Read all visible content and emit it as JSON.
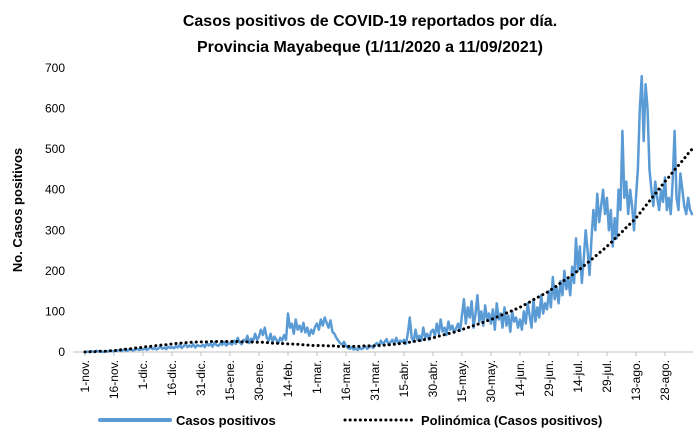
{
  "chart_data": {
    "type": "line",
    "title": "Casos positivos de COVID-19 reportados por día.",
    "subtitle": "Provincia Mayabeque (1/11/2020 a 11/09/2021)",
    "y_label": "No. Casos positivos",
    "ylim": [
      0,
      700
    ],
    "yticks": [
      0,
      100,
      200,
      300,
      400,
      500,
      600,
      700
    ],
    "grid": false,
    "legend": "bottom",
    "categories": [
      "1-nov.",
      null,
      null,
      null,
      null,
      null,
      null,
      null,
      null,
      null,
      null,
      null,
      null,
      null,
      null,
      "16-nov.",
      null,
      null,
      null,
      null,
      null,
      null,
      null,
      null,
      null,
      null,
      null,
      null,
      null,
      null,
      "1-dic.",
      null,
      null,
      null,
      null,
      null,
      null,
      null,
      null,
      null,
      null,
      null,
      null,
      null,
      null,
      "16-dic.",
      null,
      null,
      null,
      null,
      null,
      null,
      null,
      null,
      null,
      null,
      null,
      null,
      null,
      null,
      "31-dic.",
      null,
      null,
      null,
      null,
      null,
      null,
      null,
      null,
      null,
      null,
      null,
      null,
      null,
      null,
      "15-ene.",
      null,
      null,
      null,
      null,
      null,
      null,
      null,
      null,
      null,
      null,
      null,
      null,
      null,
      null,
      "30-ene.",
      null,
      null,
      null,
      null,
      null,
      null,
      null,
      null,
      null,
      null,
      null,
      null,
      null,
      null,
      "14-feb.",
      null,
      null,
      null,
      null,
      null,
      null,
      null,
      null,
      null,
      null,
      null,
      null,
      null,
      null,
      "1-mar.",
      null,
      null,
      null,
      null,
      null,
      null,
      null,
      null,
      null,
      null,
      null,
      null,
      null,
      null,
      "16-mar.",
      null,
      null,
      null,
      null,
      null,
      null,
      null,
      null,
      null,
      null,
      null,
      null,
      null,
      null,
      "31-mar.",
      null,
      null,
      null,
      null,
      null,
      null,
      null,
      null,
      null,
      null,
      null,
      null,
      null,
      null,
      "15-abr.",
      null,
      null,
      null,
      null,
      null,
      null,
      null,
      null,
      null,
      null,
      null,
      null,
      null,
      null,
      "30-abr.",
      null,
      null,
      null,
      null,
      null,
      null,
      null,
      null,
      null,
      null,
      null,
      null,
      null,
      null,
      "15-may.",
      null,
      null,
      null,
      null,
      null,
      null,
      null,
      null,
      null,
      null,
      null,
      null,
      null,
      null,
      "30-may.",
      null,
      null,
      null,
      null,
      null,
      null,
      null,
      null,
      null,
      null,
      null,
      null,
      null,
      null,
      "14-jun.",
      null,
      null,
      null,
      null,
      null,
      null,
      null,
      null,
      null,
      null,
      null,
      null,
      null,
      null,
      "29-jun.",
      null,
      null,
      null,
      null,
      null,
      null,
      null,
      null,
      null,
      null,
      null,
      null,
      null,
      null,
      "14-jul.",
      null,
      null,
      null,
      null,
      null,
      null,
      null,
      null,
      null,
      null,
      null,
      null,
      null,
      null,
      "29-jul.",
      null,
      null,
      null,
      null,
      null,
      null,
      null,
      null,
      null,
      null,
      null,
      null,
      null,
      null,
      "13-ago.",
      null,
      null,
      null,
      null,
      null,
      null,
      null,
      null,
      null,
      null,
      null,
      null,
      null,
      null,
      "28-ago.",
      null,
      null,
      null,
      null,
      null,
      null,
      null,
      null,
      null,
      null,
      null,
      null,
      null,
      null
    ],
    "series": [
      {
        "name": "Casos positivos",
        "color": "#5b9bd5",
        "style": "solid",
        "values": [
          0,
          1,
          0,
          2,
          1,
          0,
          3,
          1,
          2,
          0,
          1,
          2,
          1,
          3,
          2,
          2,
          4,
          3,
          5,
          2,
          6,
          4,
          3,
          7,
          5,
          4,
          6,
          8,
          5,
          7,
          6,
          9,
          5,
          8,
          12,
          7,
          10,
          6,
          9,
          14,
          8,
          11,
          7,
          13,
          10,
          12,
          9,
          15,
          11,
          18,
          10,
          14,
          20,
          12,
          16,
          13,
          19,
          11,
          17,
          15,
          14,
          18,
          12,
          22,
          16,
          20,
          13,
          24,
          17,
          15,
          21,
          18,
          25,
          16,
          20,
          22,
          18,
          28,
          20,
          35,
          24,
          19,
          30,
          26,
          40,
          22,
          33,
          28,
          45,
          30,
          38,
          55,
          42,
          60,
          35,
          28,
          45,
          25,
          38,
          30,
          22,
          35,
          28,
          42,
          30,
          95,
          60,
          70,
          45,
          80,
          55,
          65,
          50,
          72,
          48,
          60,
          40,
          55,
          45,
          62,
          70,
          55,
          80,
          65,
          85,
          72,
          60,
          78,
          50,
          45,
          35,
          28,
          22,
          18,
          25,
          15,
          10,
          8,
          12,
          6,
          9,
          5,
          11,
          7,
          10,
          14,
          8,
          12,
          15,
          10,
          18,
          22,
          15,
          28,
          20,
          25,
          32,
          18,
          24,
          30,
          20,
          35,
          22,
          28,
          25,
          30,
          20,
          45,
          85,
          35,
          25,
          55,
          30,
          40,
          28,
          60,
          35,
          45,
          30,
          50,
          55,
          40,
          70,
          45,
          80,
          50,
          60,
          42,
          75,
          55,
          65,
          48,
          58,
          70,
          52,
          90,
          130,
          70,
          110,
          85,
          125,
          60,
          95,
          140,
          75,
          100,
          65,
          115,
          80,
          95,
          70,
          105,
          55,
          120,
          80,
          95,
          60,
          110,
          65,
          90,
          50,
          100,
          75,
          85,
          60,
          80,
          55,
          100,
          70,
          120,
          90,
          60,
          130,
          75,
          110,
          85,
          140,
          95,
          120,
          105,
          150,
          110,
          185,
          130,
          160,
          120,
          175,
          140,
          200,
          155,
          180,
          140,
          210,
          170,
          280,
          200,
          260,
          170,
          230,
          300,
          250,
          190,
          280,
          350,
          300,
          390,
          320,
          360,
          400,
          340,
          380,
          300,
          350,
          260,
          330,
          280,
          400,
          350,
          545,
          380,
          420,
          340,
          400,
          360,
          300,
          380,
          450,
          600,
          680,
          520,
          660,
          600,
          450,
          400,
          360,
          420,
          380,
          350,
          400,
          370,
          430,
          350,
          380,
          340,
          420,
          545,
          380,
          350,
          440,
          400,
          360,
          340,
          380,
          350,
          340
        ]
      },
      {
        "name": "Polinómica (Casos positivos)",
        "color": "#000000",
        "style": "dotted",
        "values": [
          0,
          0,
          0,
          1,
          1,
          1,
          1,
          2,
          2,
          2,
          2,
          2,
          3,
          3,
          3,
          3,
          4,
          4,
          5,
          6,
          6,
          7,
          7,
          8,
          8,
          9,
          10,
          10,
          11,
          11,
          12,
          13,
          13,
          14,
          14,
          15,
          15,
          16,
          16,
          17,
          17,
          18,
          18,
          19,
          19,
          20,
          20,
          21,
          21,
          22,
          22,
          22,
          23,
          23,
          23,
          24,
          24,
          24,
          25,
          25,
          25,
          25,
          25,
          25,
          25,
          26,
          26,
          26,
          26,
          26,
          26,
          26,
          26,
          26,
          26,
          26,
          26,
          26,
          26,
          26,
          25,
          25,
          25,
          25,
          25,
          25,
          25,
          24,
          24,
          24,
          24,
          24,
          24,
          23,
          23,
          23,
          22,
          22,
          22,
          22,
          21,
          21,
          21,
          20,
          20,
          20,
          20,
          20,
          19,
          19,
          19,
          18,
          18,
          18,
          17,
          17,
          17,
          17,
          16,
          16,
          16,
          16,
          16,
          16,
          15,
          15,
          15,
          15,
          15,
          15,
          14,
          14,
          14,
          14,
          14,
          14,
          14,
          14,
          14,
          14,
          14,
          14,
          14,
          14,
          15,
          15,
          15,
          15,
          15,
          15,
          15,
          15,
          16,
          16,
          16,
          17,
          17,
          18,
          18,
          19,
          19,
          20,
          20,
          21,
          21,
          22,
          23,
          24,
          24,
          25,
          26,
          27,
          28,
          28,
          29,
          30,
          31,
          32,
          33,
          34,
          35,
          36,
          37,
          39,
          40,
          41,
          43,
          44,
          45,
          47,
          48,
          49,
          51,
          52,
          54,
          55,
          57,
          58,
          60,
          62,
          63,
          65,
          67,
          68,
          70,
          72,
          73,
          75,
          77,
          78,
          80,
          82,
          84,
          86,
          88,
          90,
          92,
          94,
          96,
          98,
          100,
          102,
          104,
          106,
          108,
          110,
          113,
          115,
          118,
          121,
          123,
          126,
          129,
          131,
          134,
          137,
          139,
          142,
          145,
          147,
          150,
          153,
          157,
          160,
          163,
          167,
          170,
          173,
          177,
          180,
          183,
          187,
          190,
          193,
          197,
          200,
          204,
          208,
          212,
          216,
          220,
          224,
          228,
          232,
          236,
          240,
          244,
          248,
          252,
          256,
          260,
          265,
          269,
          274,
          279,
          283,
          288,
          293,
          297,
          302,
          307,
          311,
          316,
          321,
          325,
          330,
          336,
          342,
          348,
          354,
          360,
          366,
          372,
          378,
          384,
          390,
          396,
          402,
          408,
          414,
          420,
          426,
          431,
          437,
          443,
          449,
          454,
          460,
          466,
          471,
          477,
          483,
          489,
          494,
          500
        ]
      }
    ]
  }
}
